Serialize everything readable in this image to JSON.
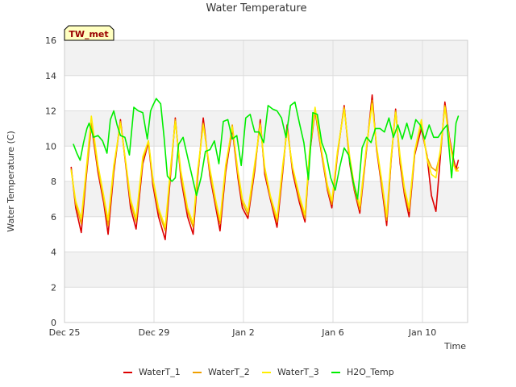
{
  "chart_data": {
    "type": "line",
    "title": "Water Temperature",
    "xlabel": "Time",
    "ylabel": "Water Temperature (C)",
    "ylim": [
      0,
      16
    ],
    "yticks": [
      0,
      2,
      4,
      6,
      8,
      10,
      12,
      14,
      16
    ],
    "xlim_days": [
      0,
      18
    ],
    "xticks": [
      {
        "label": "Dec 25",
        "day": 0
      },
      {
        "label": "Dec 29",
        "day": 4
      },
      {
        "label": "Jan 2",
        "day": 8
      },
      {
        "label": "Jan 6",
        "day": 12
      },
      {
        "label": "Jan 10",
        "day": 16
      }
    ],
    "grid": true,
    "banded_background": true,
    "station_label": "TW_met",
    "legend_position": "bottom",
    "series": [
      {
        "name": "WaterT_1",
        "color": "#dd0000",
        "width": 1.6,
        "x": [
          0.3,
          0.5,
          0.75,
          0.95,
          1.2,
          1.5,
          1.75,
          1.95,
          2.2,
          2.5,
          2.75,
          2.95,
          3.2,
          3.5,
          3.75,
          3.95,
          4.2,
          4.5,
          4.75,
          4.95,
          5.2,
          5.5,
          5.75,
          5.95,
          6.2,
          6.5,
          6.75,
          6.95,
          7.2,
          7.5,
          7.75,
          7.95,
          8.2,
          8.5,
          8.75,
          8.95,
          9.2,
          9.5,
          9.75,
          9.95,
          10.2,
          10.5,
          10.75,
          10.95,
          11.2,
          11.5,
          11.75,
          11.95,
          12.2,
          12.5,
          12.75,
          12.95,
          13.2,
          13.5,
          13.75,
          13.95,
          14.2,
          14.4,
          14.6,
          14.8,
          15.0,
          15.2,
          15.4,
          15.65,
          15.95,
          16.2,
          16.4,
          16.6,
          16.8,
          17.0,
          17.2,
          17.4,
          17.5,
          17.6
        ],
        "y": [
          8.8,
          6.5,
          5.1,
          8.0,
          11.2,
          8.5,
          6.8,
          5.0,
          8.5,
          11.5,
          8.8,
          6.5,
          5.3,
          9.0,
          10.2,
          7.8,
          6.0,
          4.7,
          8.5,
          11.6,
          8.2,
          6.0,
          5.0,
          8.2,
          11.6,
          8.3,
          6.6,
          5.2,
          8.5,
          11.0,
          8.2,
          6.5,
          5.9,
          8.6,
          11.5,
          8.4,
          7.0,
          5.4,
          8.5,
          11.2,
          8.5,
          6.8,
          5.7,
          9.5,
          12.0,
          9.5,
          7.5,
          6.5,
          9.5,
          12.3,
          9.0,
          7.5,
          6.2,
          9.8,
          12.9,
          9.8,
          7.5,
          5.5,
          9.2,
          12.1,
          9.0,
          7.2,
          6.0,
          9.5,
          11.0,
          9.5,
          7.2,
          6.3,
          9.4,
          12.5,
          10.5,
          9.2,
          8.7,
          9.2
        ]
      },
      {
        "name": "WaterT_2",
        "color": "#f0a000",
        "width": 1.6,
        "x": [
          0.3,
          0.5,
          0.75,
          0.95,
          1.2,
          1.5,
          1.75,
          1.95,
          2.2,
          2.5,
          2.75,
          2.95,
          3.2,
          3.5,
          3.75,
          3.95,
          4.2,
          4.5,
          4.75,
          4.95,
          5.2,
          5.5,
          5.75,
          5.95,
          6.2,
          6.5,
          6.75,
          6.95,
          7.2,
          7.5,
          7.75,
          7.95,
          8.2,
          8.5,
          8.75,
          8.95,
          9.2,
          9.5,
          9.75,
          9.95,
          10.2,
          10.5,
          10.75,
          10.95,
          11.2,
          11.5,
          11.75,
          11.95,
          12.2,
          12.5,
          12.75,
          12.95,
          13.2,
          13.5,
          13.75,
          13.95,
          14.2,
          14.4,
          14.6,
          14.8,
          15.0,
          15.2,
          15.4,
          15.65,
          15.95,
          16.2,
          16.4,
          16.6,
          16.8,
          17.0,
          17.2,
          17.4,
          17.5,
          17.6
        ],
        "y": [
          8.7,
          6.7,
          5.6,
          8.2,
          11.3,
          8.7,
          7.0,
          5.5,
          8.7,
          11.4,
          8.9,
          6.8,
          5.7,
          9.2,
          10.3,
          8.0,
          6.3,
          5.2,
          8.7,
          11.5,
          8.4,
          6.3,
          5.4,
          8.4,
          11.3,
          8.5,
          6.8,
          5.6,
          8.7,
          11.2,
          8.4,
          6.8,
          6.1,
          8.8,
          11.3,
          8.6,
          7.1,
          5.7,
          8.7,
          11.0,
          8.7,
          7.0,
          5.9,
          9.6,
          12.1,
          9.6,
          7.6,
          6.7,
          9.6,
          12.2,
          9.2,
          7.6,
          6.4,
          9.9,
          12.6,
          9.9,
          7.7,
          5.8,
          9.3,
          12.0,
          9.2,
          7.4,
          6.3,
          9.6,
          11.3,
          9.4,
          8.8,
          8.6,
          9.6,
          12.3,
          10.4,
          9.0,
          8.6,
          8.8
        ]
      },
      {
        "name": "WaterT_3",
        "color": "#ffee00",
        "width": 1.6,
        "x": [
          0.3,
          0.5,
          0.75,
          0.95,
          1.2,
          1.5,
          1.75,
          1.95,
          2.2,
          2.5,
          2.75,
          2.95,
          3.2,
          3.5,
          3.75,
          3.95,
          4.2,
          4.5,
          4.75,
          4.95,
          5.2,
          5.5,
          5.75,
          5.95,
          6.2,
          6.5,
          6.75,
          6.95,
          7.2,
          7.5,
          7.75,
          7.95,
          8.2,
          8.5,
          8.75,
          8.95,
          9.2,
          9.5,
          9.75,
          9.95,
          10.2,
          10.5,
          10.75,
          10.95,
          11.2,
          11.5,
          11.75,
          11.95,
          12.2,
          12.5,
          12.75,
          12.95,
          13.2,
          13.5,
          13.75,
          13.95,
          14.2,
          14.4,
          14.6,
          14.8,
          15.0,
          15.2,
          15.4,
          15.65,
          15.95,
          16.2,
          16.4,
          16.6,
          16.8,
          17.0,
          17.2,
          17.4,
          17.5,
          17.6
        ],
        "y": [
          8.6,
          6.9,
          5.9,
          8.4,
          11.7,
          8.9,
          7.2,
          5.8,
          8.9,
          11.3,
          9.0,
          7.0,
          5.9,
          9.4,
          10.3,
          8.2,
          6.5,
          5.4,
          8.9,
          11.4,
          8.6,
          6.5,
          5.6,
          8.6,
          11.2,
          8.7,
          7.0,
          5.8,
          8.9,
          11.1,
          8.6,
          7.0,
          6.3,
          9.0,
          11.2,
          8.8,
          7.2,
          5.9,
          8.9,
          10.9,
          8.8,
          7.2,
          6.1,
          9.7,
          12.2,
          9.7,
          7.8,
          6.9,
          9.7,
          12.1,
          9.4,
          7.8,
          6.6,
          10.0,
          12.4,
          10.0,
          7.9,
          6.0,
          9.4,
          11.9,
          9.4,
          7.6,
          6.5,
          9.7,
          11.5,
          9.3,
          8.4,
          8.2,
          9.8,
          12.2,
          10.3,
          8.9,
          8.6,
          8.6
        ]
      },
      {
        "name": "H2O_Temp",
        "color": "#00ee00",
        "width": 1.6,
        "x": [
          0.4,
          0.55,
          0.7,
          0.85,
          1.0,
          1.1,
          1.3,
          1.5,
          1.7,
          1.9,
          2.05,
          2.2,
          2.35,
          2.5,
          2.7,
          2.9,
          3.1,
          3.3,
          3.5,
          3.7,
          3.85,
          3.95,
          4.1,
          4.3,
          4.45,
          4.6,
          4.8,
          4.95,
          5.1,
          5.3,
          5.5,
          5.7,
          5.9,
          6.1,
          6.3,
          6.5,
          6.7,
          6.9,
          7.1,
          7.3,
          7.5,
          7.7,
          7.9,
          8.1,
          8.3,
          8.5,
          8.7,
          8.9,
          9.1,
          9.3,
          9.5,
          9.7,
          9.9,
          10.1,
          10.3,
          10.5,
          10.7,
          10.9,
          11.1,
          11.3,
          11.5,
          11.7,
          11.9,
          12.1,
          12.3,
          12.5,
          12.7,
          12.9,
          13.1,
          13.3,
          13.5,
          13.7,
          13.9,
          14.1,
          14.3,
          14.5,
          14.7,
          14.9,
          15.1,
          15.3,
          15.5,
          15.7,
          15.9,
          16.1,
          16.3,
          16.5,
          16.7,
          16.9,
          17.1,
          17.3,
          17.5,
          17.6
        ],
        "y": [
          10.1,
          9.6,
          9.2,
          10.2,
          11.0,
          11.3,
          10.5,
          10.6,
          10.3,
          9.6,
          11.5,
          12.0,
          11.2,
          10.6,
          10.5,
          9.5,
          12.2,
          12.0,
          11.9,
          10.4,
          12.0,
          12.3,
          12.7,
          12.4,
          10.5,
          8.3,
          8.0,
          8.2,
          10.1,
          10.5,
          9.4,
          8.3,
          7.2,
          8.2,
          9.7,
          9.8,
          10.3,
          9.0,
          11.4,
          11.5,
          10.4,
          10.6,
          8.9,
          11.6,
          11.8,
          10.8,
          10.8,
          10.2,
          12.3,
          12.1,
          12.0,
          11.6,
          10.5,
          12.3,
          12.5,
          11.3,
          10.2,
          8.1,
          11.9,
          11.8,
          10.2,
          9.5,
          8.2,
          7.5,
          8.8,
          9.9,
          9.5,
          8.0,
          7.0,
          9.9,
          10.5,
          10.2,
          11.0,
          11.0,
          10.8,
          11.6,
          10.5,
          11.2,
          10.4,
          11.3,
          10.4,
          11.5,
          11.2,
          10.4,
          11.2,
          10.5,
          10.5,
          10.9,
          11.2,
          8.2,
          11.3,
          11.7
        ]
      }
    ]
  }
}
